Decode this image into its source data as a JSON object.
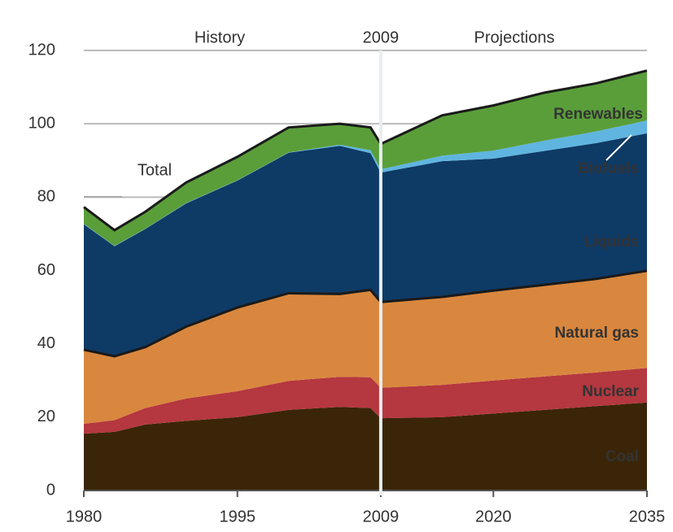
{
  "chart_data": {
    "type": "stacked_area",
    "annotations": {
      "history": "History",
      "divider": "2009",
      "projections": "Projections",
      "total": "Total"
    },
    "x": [
      1980,
      1983,
      1986,
      1990,
      1995,
      2000,
      2005,
      2008,
      2009,
      2015,
      2020,
      2025,
      2030,
      2035
    ],
    "series": [
      {
        "name": "Coal",
        "color": "#3b2508",
        "values": [
          15.5,
          16,
          18,
          19,
          20,
          22,
          22.8,
          22.5,
          19.7,
          20,
          21,
          22,
          23,
          24
        ]
      },
      {
        "name": "Nuclear",
        "color": "#b5373f",
        "values": [
          2.7,
          3.2,
          4.5,
          6.1,
          7.1,
          7.9,
          8.2,
          8.4,
          8.3,
          8.8,
          9,
          9.1,
          9.2,
          9.4
        ]
      },
      {
        "name": "Natural gas",
        "color": "#d9873e",
        "values": [
          20.2,
          17.4,
          16.6,
          19.6,
          22.8,
          23.9,
          22.6,
          23.8,
          23.4,
          24,
          24.5,
          25,
          25.5,
          26.5
        ]
      },
      {
        "name": "Liquids",
        "color": "#0e3a66",
        "values": [
          34.2,
          30,
          32.2,
          33.6,
          34.6,
          38.3,
          40.4,
          37.3,
          35.3,
          37,
          36,
          36.5,
          37,
          37.5
        ]
      },
      {
        "name": "Biofuels",
        "color": "#5fb5df",
        "values": [
          0.1,
          0.1,
          0.1,
          0.1,
          0.1,
          0.1,
          0.3,
          0.8,
          0.9,
          1.5,
          2.2,
          2.8,
          3.2,
          3.5
        ]
      },
      {
        "name": "Renewables",
        "color": "#5a9e3a",
        "values": [
          4.6,
          4.3,
          4.6,
          5.6,
          6.4,
          6.8,
          5.7,
          6.2,
          6.9,
          11,
          12.3,
          13.1,
          13.1,
          13.6
        ]
      }
    ],
    "xlim": [
      1980,
      2035
    ],
    "xticks": [
      1980,
      1995,
      2009,
      2020,
      2035
    ],
    "ylim": [
      0,
      120
    ],
    "yticks": [
      0,
      20,
      40,
      60,
      80,
      100,
      120
    ],
    "grid": true
  }
}
